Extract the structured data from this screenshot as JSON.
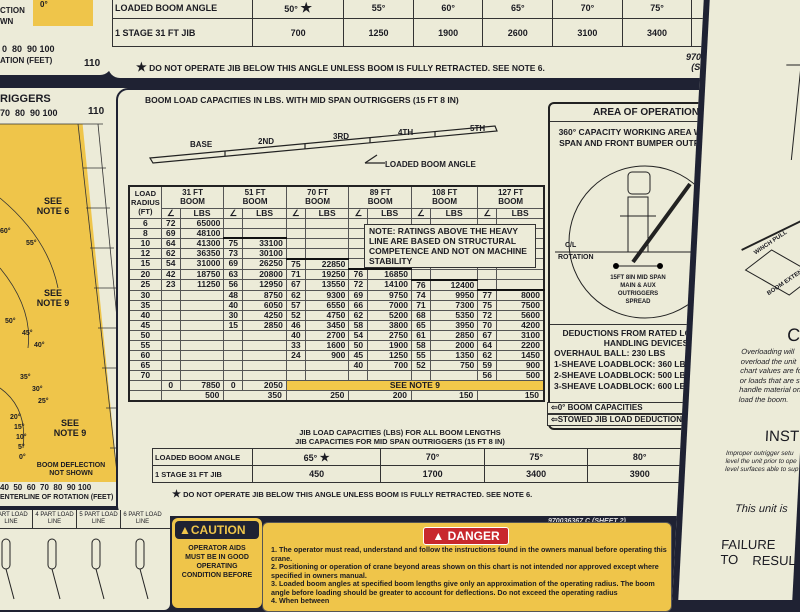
{
  "sheet1": {
    "row_label_angle": "LOADED BOOM ANGLE",
    "row_label_jib": "1 STAGE 31 FT JIB",
    "angles": [
      "50°",
      "55°",
      "60°",
      "65°",
      "70°",
      "75°",
      "80°"
    ],
    "capacities": [
      "700",
      "1250",
      "1900",
      "2600",
      "3100",
      "3400",
      "3900"
    ],
    "star": "★",
    "note": "DO NOT OPERATE JIB BELOW THIS ANGLE UNLESS BOOM IS FULLY RETRACTED. SEE NOTE 6.",
    "part_number": "970036367 C",
    "sheet": "(SHEET 1)"
  },
  "top_left": {
    "angle": "0°",
    "line1": "CTION",
    "line2": "WN",
    "scale": "0  80  90 100",
    "axis": "ATION (FEET)",
    "end": "110"
  },
  "gauge": {
    "header": "RIGGERS",
    "scale_top": "70  80  90 100",
    "end_top": "110",
    "see_note_6": "SEE NOTE 6",
    "see_note_9a": "SEE NOTE 9",
    "see_note_9b": "SEE NOTE 9",
    "angles": [
      "60°",
      "55°",
      "50°",
      "45°",
      "40°",
      "35°",
      "30°",
      "25°",
      "20°",
      "15°",
      "10°",
      "5°",
      "0°"
    ],
    "deflection": "BOOM DEFLECTION NOT SHOWN",
    "scale_bottom": "40  50  60  70  80  90 100",
    "end_bottom": "110",
    "axis": "ENTERLINE OF ROTATION (FEET)"
  },
  "main": {
    "title": "BOOM LOAD CAPACITIES IN LBS. WITH MID SPAN OUTRIGGERS (15 FT 8 IN)",
    "boom_sections": [
      "BASE",
      "2ND",
      "3RD",
      "4TH",
      "5TH"
    ],
    "loaded_boom_angle": "LOADED BOOM ANGLE",
    "table": {
      "radius_header": "LOAD RADIUS (FT)",
      "lbs": "LBS",
      "radii": [
        6,
        8,
        10,
        12,
        15,
        20,
        25,
        30,
        35,
        40,
        45,
        50,
        55,
        60,
        65,
        70
      ],
      "booms": [
        {
          "name": "31 FT BOOM",
          "ratings": [
            [
              6,
              72,
              65000
            ],
            [
              8,
              69,
              48100
            ],
            [
              10,
              64,
              41300
            ],
            [
              12,
              62,
              36350
            ],
            [
              15,
              54,
              31000
            ],
            [
              20,
              42,
              18750
            ],
            [
              25,
              23,
              11250
            ]
          ],
          "zero_deg": [
            0,
            7850
          ],
          "stowed_jib": "500"
        },
        {
          "name": "51 FT BOOM",
          "ratings": [
            [
              10,
              75,
              33100
            ],
            [
              12,
              73,
              30100
            ],
            [
              15,
              69,
              26250
            ],
            [
              20,
              63,
              20800
            ],
            [
              25,
              56,
              12950
            ],
            [
              30,
              48,
              8750
            ],
            [
              35,
              40,
              6050
            ],
            [
              40,
              30,
              4250
            ],
            [
              45,
              15,
              2850
            ]
          ],
          "zero_deg": [
            0,
            2050
          ],
          "stowed_jib": "350"
        },
        {
          "name": "70 FT BOOM",
          "ratings": [
            [
              15,
              75,
              22850
            ],
            [
              20,
              71,
              19250
            ],
            [
              25,
              67,
              13550
            ],
            [
              30,
              62,
              9300
            ],
            [
              35,
              57,
              6550
            ],
            [
              40,
              52,
              4750
            ],
            [
              45,
              46,
              3450
            ],
            [
              50,
              40,
              2700
            ],
            [
              55,
              33,
              1600
            ],
            [
              60,
              24,
              900
            ]
          ],
          "stowed_jib": "250"
        },
        {
          "name": "89 FT BOOM",
          "ratings": [
            [
              20,
              76,
              16850
            ],
            [
              25,
              72,
              14100
            ],
            [
              30,
              69,
              9750
            ],
            [
              35,
              66,
              7000
            ],
            [
              40,
              62,
              5200
            ],
            [
              45,
              58,
              3800
            ],
            [
              50,
              54,
              2750
            ],
            [
              55,
              50,
              1900
            ],
            [
              60,
              45,
              1250
            ],
            [
              65,
              40,
              700
            ]
          ],
          "stowed_jib": "200"
        },
        {
          "name": "108 FT BOOM",
          "ratings": [
            [
              25,
              76,
              12400
            ],
            [
              30,
              74,
              9950
            ],
            [
              35,
              71,
              7300
            ],
            [
              40,
              68,
              5350
            ],
            [
              45,
              65,
              3950
            ],
            [
              50,
              61,
              2850
            ],
            [
              55,
              58,
              2000
            ],
            [
              60,
              55,
              1350
            ],
            [
              65,
              52,
              750
            ]
          ],
          "stowed_jib": "150"
        },
        {
          "name": "127 FT BOOM",
          "ratings": [
            [
              30,
              77,
              8000
            ],
            [
              35,
              75,
              7500
            ],
            [
              40,
              72,
              5600
            ],
            [
              45,
              70,
              4200
            ],
            [
              50,
              67,
              3100
            ],
            [
              55,
              64,
              2200
            ],
            [
              60,
              62,
              1450
            ],
            [
              65,
              59,
              900
            ],
            [
              70,
              56,
              500
            ]
          ],
          "stowed_jib": "150"
        }
      ],
      "see_note_9": "SEE NOTE 9",
      "zero_label": "0° BOOM CAPACITIES",
      "stowed_label": "STOWED JIB LOAD DEDUCTIONS"
    },
    "note": "NOTE: RATINGS ABOVE THE HEAVY LINE ARE BASED ON STRUCTURAL COMPETENCE AND NOT ON MACHINE STABILITY",
    "area": {
      "title": "AREA OF OPERATION",
      "desc": "360° CAPACITY WORKING AREA WITH MID SPAN AND FRONT BUMPER OUTRIGGERS",
      "cl": "C/L",
      "rotation": "ROTATION",
      "spread": "15FT 8IN MID SPAN MAIN & AUX OUTRIGGERS SPREAD"
    },
    "deductions": {
      "title": "DEDUCTIONS FROM RATED LOADS FOR HANDLING DEVICES",
      "items": [
        "OVERHAUL BALL: 230 LBS",
        "1-SHEAVE LOADBLOCK: 360 LBS",
        "2-SHEAVE LOADBLOCK: 500 LBS",
        "3-SHEAVE LOADBLOCK: 600 LBS"
      ]
    },
    "jib": {
      "title1": "JIB LOAD CAPACITIES (LBS) FOR ALL BOOM LENGTHS",
      "title2": "JIB CAPACITIES FOR MID SPAN OUTRIGGERS (15 FT 8 IN)",
      "row_label_angle": "LOADED BOOM ANGLE",
      "row_label_jib": "1 STAGE 31 FT JIB",
      "angles": [
        "65°",
        "70°",
        "75°",
        "80°"
      ],
      "capacities": [
        "450",
        "1700",
        "3400",
        "3900"
      ],
      "star": "★",
      "note": "DO NOT OPERATE JIB BELOW THIS ANGLE UNLESS BOOM IS FULLY RETRACTED. SEE NOTE 6."
    },
    "part_number": "970036367 C  (SHEET 2)"
  },
  "load_lines": [
    "PART LOAD LINE",
    "4 PART LOAD LINE",
    "5 PART LOAD LINE",
    "6 PART LOAD LINE"
  ],
  "caution": {
    "title": "CAUTION",
    "text": "OPERATOR AIDS MUST BE IN GOOD OPERATING CONDITION BEFORE"
  },
  "danger": {
    "title": "DANGER",
    "items": [
      "1. The operator must read, understand and follow the instructions found in the owners manual before operating this crane.",
      "2. Positioning or operation of crane beyond areas shown on this chart is not intended nor approved except where specified in owners manual.",
      "3. Loaded boom angles at specified boom lengths give only an approximation of the operating radius. The boom angle before loading should be greater to account for deflections. Do not exceed the operating radius",
      "4. When between"
    ]
  },
  "right_panel": {
    "winch": "WINCH PULL",
    "boom_ext": "BOOM EXTEN",
    "heading1": "C",
    "overload": [
      "Overloading will",
      "overload the unit",
      "chart values are fo",
      "or loads that are st",
      "handle material on",
      "load the boom."
    ],
    "heading2": "INST",
    "inst": [
      "Improper outrigger setu",
      "level the unit prior to ope",
      "level surfaces able to sup"
    ],
    "unit": "This unit is",
    "failure1": "FAILURE TO",
    "failure2": "RESUL"
  },
  "colors": {
    "panel": "#ecebd8",
    "frame": "#1f2233",
    "yellow": "#efc54a",
    "danger": "#c8282d"
  }
}
